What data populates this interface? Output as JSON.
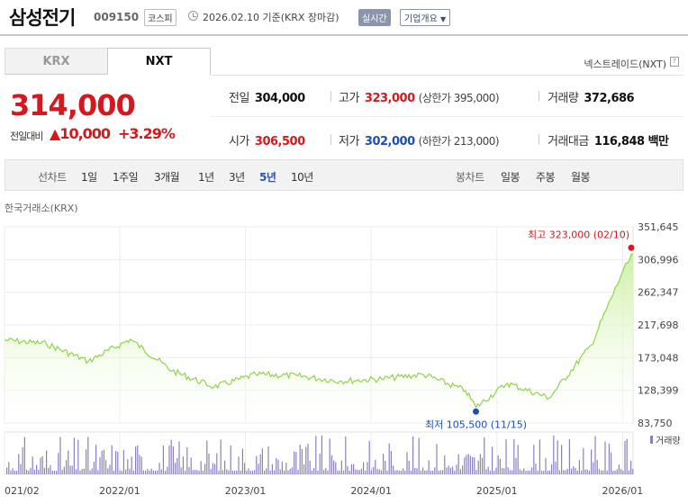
{
  "header": {
    "name": "삼성전기",
    "code": "009150",
    "market": "코스피",
    "date": "2026.02.10 기준(KRX 장마감)",
    "realtime": "실시간",
    "company_info": "기업개요"
  },
  "tabs": [
    {
      "label": "KRX",
      "active": false
    },
    {
      "label": "NXT",
      "active": true
    }
  ],
  "nxt_link": "넥스트레이드(NXT)",
  "quote": {
    "price": "314,000",
    "change_label": "전일대비",
    "change_value": "10,000",
    "change_pct": "+3.29%"
  },
  "stats": {
    "prev_label": "전일",
    "prev": "304,000",
    "high_label": "고가",
    "high": "323,000",
    "upper_limit": "(상한가 395,000)",
    "volume_label": "거래량",
    "volume": "372,686",
    "open_label": "시가",
    "open": "306,500",
    "low_label": "저가",
    "low": "302,000",
    "lower_limit": "(하한가 213,000)",
    "amount_label": "거래대금",
    "amount": "116,848 백만"
  },
  "periods": {
    "line_label": "선차트",
    "line": [
      "1일",
      "1주일",
      "3개월",
      "1년",
      "3년",
      "5년",
      "10년"
    ],
    "active": "5년",
    "candle_label": "봉차트",
    "candle": [
      "일봉",
      "주봉",
      "월봉"
    ]
  },
  "source": "한국거래소(KRX)",
  "colors": {
    "up": "#d4181e",
    "down": "#1a4fb6",
    "line": "#8fd44a",
    "volume": "#8c80c2"
  },
  "chart_data": {
    "type": "area",
    "x": [
      "2021/02",
      "2021/06",
      "2021/10",
      "2022/02",
      "2022/06",
      "2022/10",
      "2023/02",
      "2023/06",
      "2023/10",
      "2024/02",
      "2024/06",
      "2024/10",
      "2024/11",
      "2025/02",
      "2025/06",
      "2025/10",
      "2026/01",
      "2026/02"
    ],
    "y": [
      197000,
      192000,
      168000,
      198000,
      155000,
      133000,
      150000,
      148000,
      141000,
      144000,
      150000,
      128000,
      105500,
      138000,
      118000,
      190000,
      290000,
      314000
    ],
    "ylim": [
      83750,
      351645
    ],
    "yticks": [
      "351,645",
      "306,996",
      "262,347",
      "217,698",
      "173,048",
      "128,399",
      "83,750"
    ],
    "xticks": [
      "021/02",
      "2022/01",
      "2023/01",
      "2024/01",
      "2025/01",
      "2026/01"
    ],
    "max_label": "최고 323,000 (02/10)",
    "min_label": "최저 105,500 (11/15)",
    "volume_label": "거래량"
  }
}
